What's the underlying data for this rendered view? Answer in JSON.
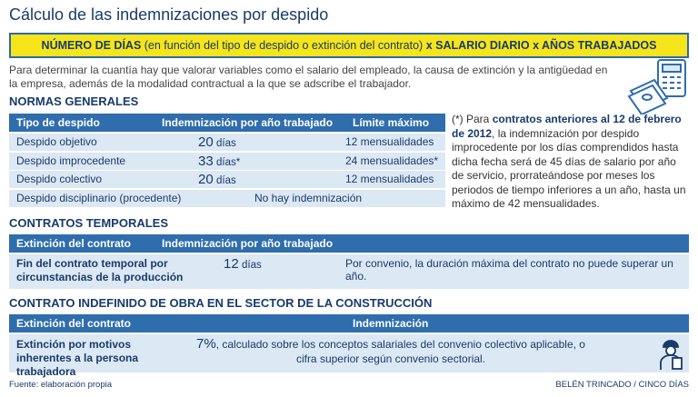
{
  "title": "Cálculo de las indemnizaciones por despido",
  "formula": [
    "NÚMERO DE DÍAS",
    "(en función del tipo de despido o extinción del contrato)",
    "x SALARIO DIARIO x AÑOS TRABAJADOS"
  ],
  "intro": "Para determinar la cuantía hay que valorar variables como el salario del empleado, la causa de extinción y la antigüedad en la empresa, además de la modalidad contractual a la que se adscribe el trabajador.",
  "normas": {
    "heading": "NORMAS GENERALES",
    "columns": [
      "Tipo de despido",
      "Indemnización por año trabajado",
      "Límite máximo"
    ],
    "rows": [
      {
        "type": "Despido objetivo",
        "number": "20",
        "unit": "días",
        "limit": "12 mensualidades"
      },
      {
        "type": "Despido improcedente",
        "number": "33",
        "unit": "días*",
        "limit": "24 mensualidades*"
      },
      {
        "type": "Despido colectivo",
        "number": "20",
        "unit": "días",
        "limit": "12 mensualidades"
      },
      {
        "type": "Despido disciplinario (procedente)",
        "text": "No hay indemnización"
      }
    ]
  },
  "note": [
    "(*) Para",
    "contratos anteriores al 12 de febrero de 2012",
    ", la indemnización por despido improcedente por los días comprendidos hasta dicha fecha será de 45 días de salario por año de servicio, prorrateándose por meses los periodos de tiempo inferiores a un año, hasta un máximo de 42 mensualidades."
  ],
  "temporales": {
    "heading": "CONTRATOS TEMPORALES",
    "columns": [
      "Extinción del contrato",
      "Indemnización por año trabajado"
    ],
    "row": [
      "Fin del contrato temporal por circunstancias de la producción",
      {
        "number": "12",
        "unit": "días"
      },
      "Por convenio, la duración máxima del contrato no puede superar un año."
    ]
  },
  "construccion": {
    "heading": "CONTRATO INDEFINIDO DE OBRA EN EL SECTOR DE LA CONSTRUCCIÓN",
    "columns": [
      "Extinción del contrato",
      "Indemnización"
    ],
    "row": [
      "Extinción por motivos inherentes a la persona trabajadora",
      {
        "number": "7%",
        "text": ", calculado sobre los conceptos salariales del convenio colectivo aplicable, o cifra superior según convenio sectorial."
      }
    ]
  },
  "footer": {
    "source": "Fuente: elaboración propia",
    "credit": "BELÉN TRINCADO / CINCO DÍAS"
  }
}
